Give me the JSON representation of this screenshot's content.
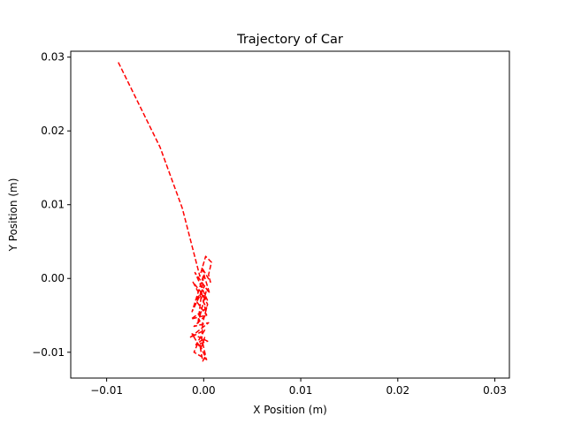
{
  "chart_data": {
    "type": "line",
    "title": "Trajectory of Car",
    "xlabel": "X Position (m)",
    "ylabel": "Y Position (m)",
    "xlim": [
      -0.0137,
      0.0315
    ],
    "ylim": [
      -0.0135,
      0.0308
    ],
    "xticks": [
      -0.01,
      0.0,
      0.01,
      0.02,
      0.03
    ],
    "xtick_labels": [
      "−0.01",
      "0.00",
      "0.01",
      "0.02",
      "0.03"
    ],
    "yticks": [
      -0.01,
      0.0,
      0.01,
      0.02,
      0.03
    ],
    "ytick_labels": [
      "−0.01",
      "0.00",
      "0.01",
      "0.02",
      "0.03"
    ],
    "grid": false,
    "series": [
      {
        "style": "dashed",
        "color": "#ff0000",
        "x": [
          -0.0088,
          -0.0045,
          -0.0022,
          -0.0004,
          0.0002,
          0.0008,
          0.0005,
          0.0007,
          -0.0002,
          0.0006,
          -0.0009,
          0.0004,
          -0.0011,
          0.0003,
          -0.0013,
          0.0002,
          -0.001,
          0.0005,
          -0.0014,
          0.0001,
          -0.0008,
          0.0004,
          -0.0012,
          -0.0003,
          0.0001,
          -0.0006,
          -0.001,
          0.0003,
          -0.0004,
          -0.0001,
          0.0002,
          -0.0002,
          -0.0001,
          0.0004,
          -0.0002,
          0.0003,
          -0.0008,
          0.0001,
          -0.0012,
          0.0,
          -0.0006,
          0.0003
        ],
        "y": [
          0.0293,
          0.0178,
          0.0095,
          0.0003,
          0.003,
          0.0022,
          0.0005,
          -0.0005,
          0.0015,
          -0.002,
          0.0008,
          -0.003,
          -0.0005,
          -0.004,
          -0.0055,
          -0.005,
          -0.0065,
          -0.006,
          -0.008,
          -0.007,
          -0.009,
          -0.0085,
          -0.0075,
          -0.0095,
          -0.008,
          -0.0088,
          -0.01,
          -0.011,
          -0.009,
          -0.0112,
          -0.0105,
          -0.0082,
          -0.006,
          -0.0035,
          -0.002,
          -0.005,
          -0.003,
          -0.001,
          -0.0045,
          0.0005,
          -0.0062,
          -0.0015
        ]
      }
    ]
  }
}
